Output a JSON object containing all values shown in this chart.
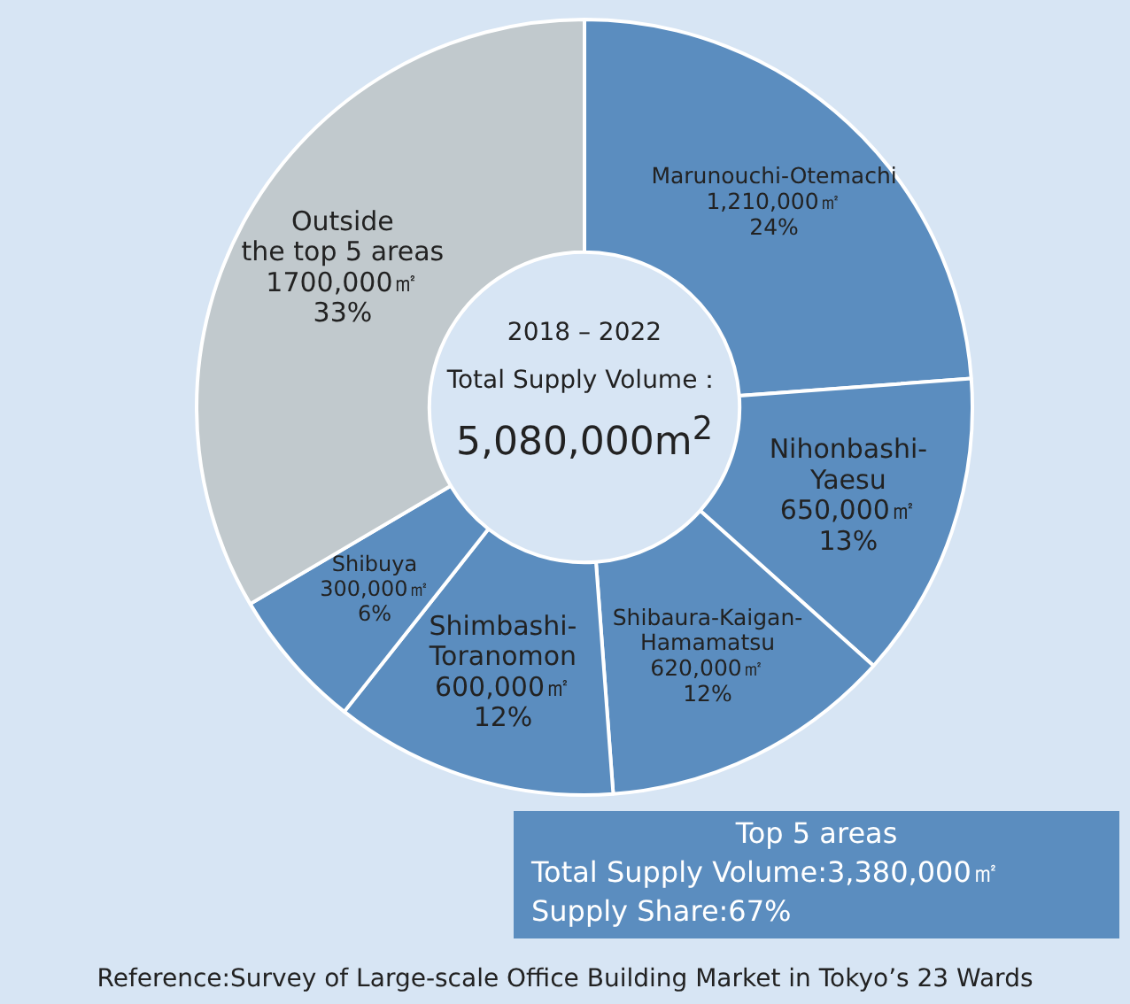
{
  "chart_data": {
    "type": "donut",
    "title": "2018 – 2022",
    "subtitle": "Total Supply Volume：",
    "categories": [
      "Marunouchi-Otemachi",
      "Nihonbashi-\nYaesu",
      "Shibaura-Kaigan-\nHamamatsu",
      "Shimbashi-\nToranomon",
      "Shibuya",
      "Outside\nthe top 5 areas"
    ],
    "values": [
      1210000,
      650000,
      620000,
      600000,
      300000,
      1700000
    ],
    "value_labels": [
      "1,210,000㎡\n24%",
      "650,000㎡\n13%",
      "620,000㎡\n12%",
      "600,000㎡\n12%",
      "300,000㎡\n6%",
      "1700,000㎡\n33%"
    ],
    "colors": [
      "#5b8dbf",
      "#5b8dbf",
      "#5b8dbf",
      "#5b8dbf",
      "#5b8dbf",
      "#c1c9cd"
    ],
    "legend": false,
    "annotations": [
      "5,080,000m$^{2}$",
      "Top 5 areas\nTotal Supply Volume:3,380,000㎡\nSupply Share:67%",
      "Reference:Survey of Large-scale Office Building Market in Tokyo’s 23 Wards"
    ]
  }
}
